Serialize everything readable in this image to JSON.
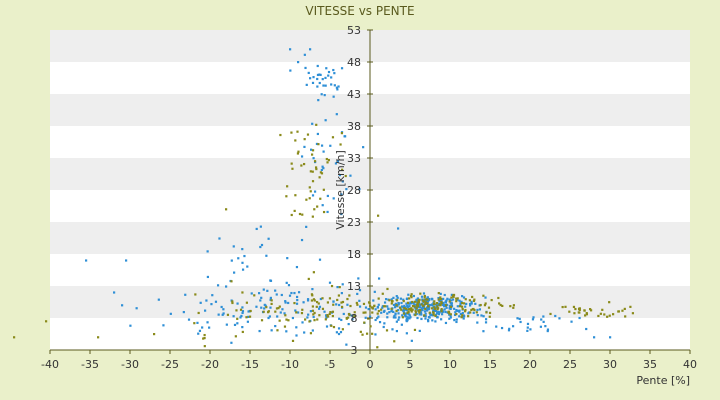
{
  "chart_data": {
    "type": "scatter",
    "title": "VITESSE vs PENTE",
    "xlabel": "Pente [%]",
    "ylabel": "Vitesse [km/h]",
    "xlim": [
      -40,
      40
    ],
    "ylim": [
      3,
      53
    ],
    "x_ticks": [
      -40,
      -35,
      -30,
      -25,
      -20,
      -15,
      -10,
      -5,
      0,
      5,
      10,
      15,
      20,
      25,
      30,
      35,
      40
    ],
    "y_ticks": [
      3,
      8,
      13,
      18,
      23,
      28,
      33,
      38,
      43,
      48,
      53
    ],
    "grid": "horizontal alternating bands",
    "colors": {
      "background": "#eaf0ca",
      "plot_band_light": "#ffffff",
      "plot_band_dark": "#eeeeee",
      "series_blue": "#2e8fd6",
      "series_olive": "#8a8a1a"
    },
    "series": [
      {
        "color": "#2e8fd6",
        "clusters": [
          {
            "x_center": -6,
            "x_spread": 2.5,
            "y_center": 45,
            "y_spread": 3,
            "count": 35
          },
          {
            "x_center": -5,
            "x_spread": 3,
            "y_center": 32,
            "y_spread": 6,
            "count": 35
          },
          {
            "x_center": -15,
            "x_spread": 7,
            "y_center": 18,
            "y_spread": 4,
            "count": 25
          },
          {
            "x_center": -8,
            "x_spread": 14,
            "y_center": 9,
            "y_spread": 3.5,
            "count": 170
          },
          {
            "x_center": 7,
            "x_spread": 5,
            "y_center": 9.5,
            "y_spread": 1.8,
            "count": 300
          },
          {
            "x_center": 20,
            "x_spread": 7,
            "y_center": 7,
            "y_spread": 1.5,
            "count": 30
          }
        ],
        "outliers": [
          [
            -35.5,
            17
          ],
          [
            -30.5,
            17
          ],
          [
            -32,
            12
          ],
          [
            -31,
            10
          ],
          [
            -10,
            50
          ],
          [
            -9,
            48
          ],
          [
            -7.5,
            50
          ],
          [
            3.5,
            22
          ],
          [
            28,
            5
          ],
          [
            30,
            5
          ]
        ]
      },
      {
        "color": "#8a8a1a",
        "clusters": [
          {
            "x_center": -7,
            "x_spread": 3.5,
            "y_center": 30,
            "y_spread": 7,
            "count": 50
          },
          {
            "x_center": -8,
            "x_spread": 12,
            "y_center": 9,
            "y_spread": 3.5,
            "count": 110
          },
          {
            "x_center": 8,
            "x_spread": 8,
            "y_center": 10,
            "y_spread": 1.5,
            "count": 160
          },
          {
            "x_center": 27,
            "x_spread": 5,
            "y_center": 9,
            "y_spread": 1,
            "count": 35
          }
        ],
        "outliers": [
          [
            -44.5,
            5
          ],
          [
            -40.5,
            7.5
          ],
          [
            -34,
            5
          ],
          [
            -18,
            25
          ],
          [
            1,
            24
          ],
          [
            -27,
            5.5
          ]
        ]
      }
    ]
  }
}
